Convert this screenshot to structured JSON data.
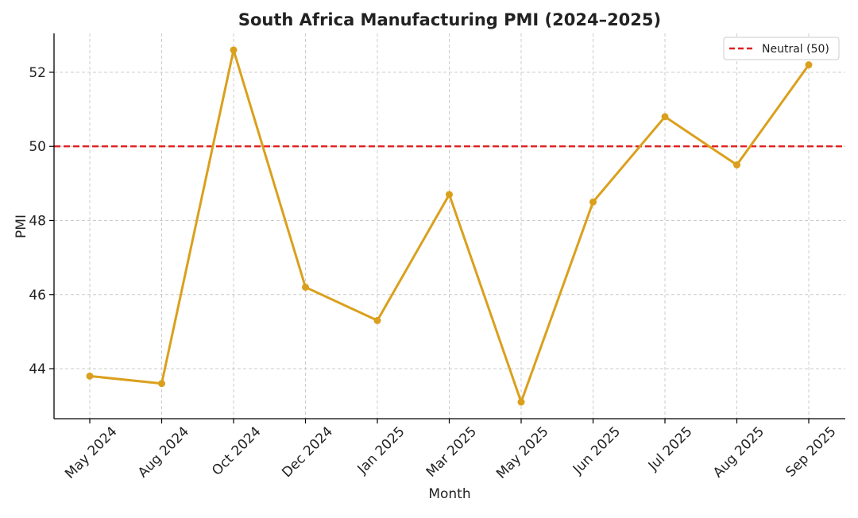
{
  "chart_data": {
    "type": "line",
    "title": "South Africa Manufacturing PMI (2024–2025)",
    "xlabel": "Month",
    "ylabel": "PMI",
    "categories": [
      "May 2024",
      "Aug 2024",
      "Oct 2024",
      "Dec 2024",
      "Jan 2025",
      "Mar 2025",
      "May 2025",
      "Jun 2025",
      "Jul 2025",
      "Aug 2025",
      "Sep 2025"
    ],
    "series": [
      {
        "values": [
          43.8,
          43.6,
          52.6,
          46.2,
          45.3,
          48.7,
          43.1,
          48.5,
          50.8,
          49.5,
          52.2
        ],
        "color": "#DAA01D"
      }
    ],
    "reference_line": {
      "name": "Neutral (50)",
      "value": 50,
      "color": "#E02020",
      "style": "dashed"
    },
    "ylim": [
      42.65,
      53.05
    ],
    "yticks": [
      44,
      46,
      48,
      50,
      52
    ],
    "grid": true,
    "legend_position": "top-right"
  }
}
